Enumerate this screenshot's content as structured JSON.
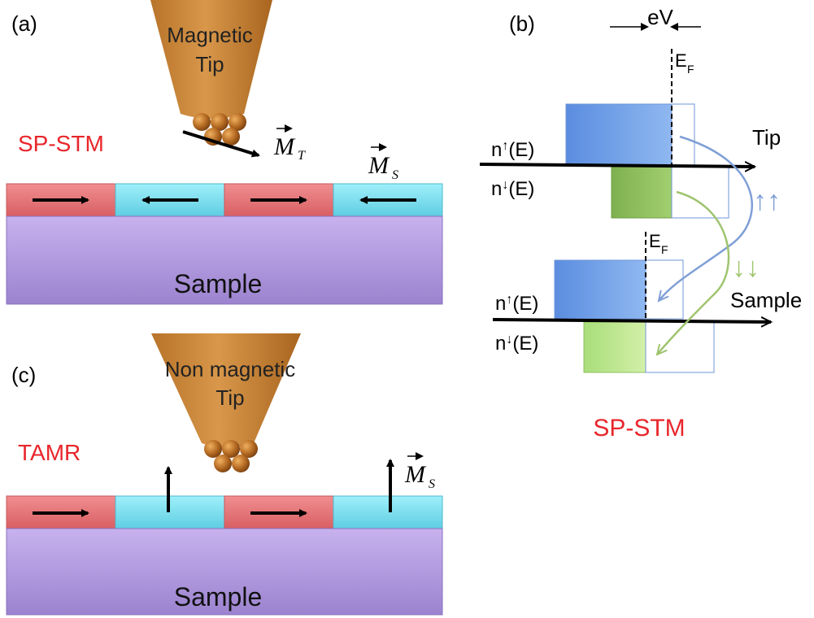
{
  "panel_a": {
    "letter": "(a)",
    "tip_label_line1": "Magnetic",
    "tip_label_line2": "Tip",
    "method_label": "SP-STM",
    "tip_moment_symbol": "M",
    "tip_moment_subscript": "T",
    "sample_moment_symbol": "M",
    "sample_moment_subscript": "S",
    "sample_label": "Sample",
    "domain_directions": [
      "right",
      "left",
      "right",
      "left"
    ]
  },
  "panel_b": {
    "letter": "(b)",
    "bias_label": "eV",
    "fermi_symbol": "E",
    "fermi_subscript": "F",
    "tip_axis_label": "Tip",
    "sample_axis_label": "Sample",
    "dos_up_label": "n",
    "dos_down_label": "n",
    "dos_suffix": "(E)",
    "spin_up_channel": "↑↑",
    "spin_down_channel": "↓↓",
    "caption": "SP-STM"
  },
  "panel_c": {
    "letter": "(c)",
    "tip_label_line1": "Non magnetic",
    "tip_label_line2": "Tip",
    "method_label": "TAMR",
    "sample_moment_symbol": "M",
    "sample_moment_subscript": "S",
    "sample_label": "Sample",
    "domain_directions": [
      "right",
      "up",
      "right",
      "up"
    ]
  },
  "colors": {
    "tip_orange": "#c98432",
    "tip_ball": "#a8621e",
    "domain_red": "#e8777a",
    "domain_cyan": "#7fe0ef",
    "substrate_purple": "#b79be0",
    "label_red": "#e8262b",
    "dos_blue": "#6f9fe6",
    "dos_green_dark": "#8fbf5f",
    "dos_green_light": "#b9e68a",
    "arrow_blue": "#7f9fd6",
    "arrow_green": "#9fc46f"
  }
}
